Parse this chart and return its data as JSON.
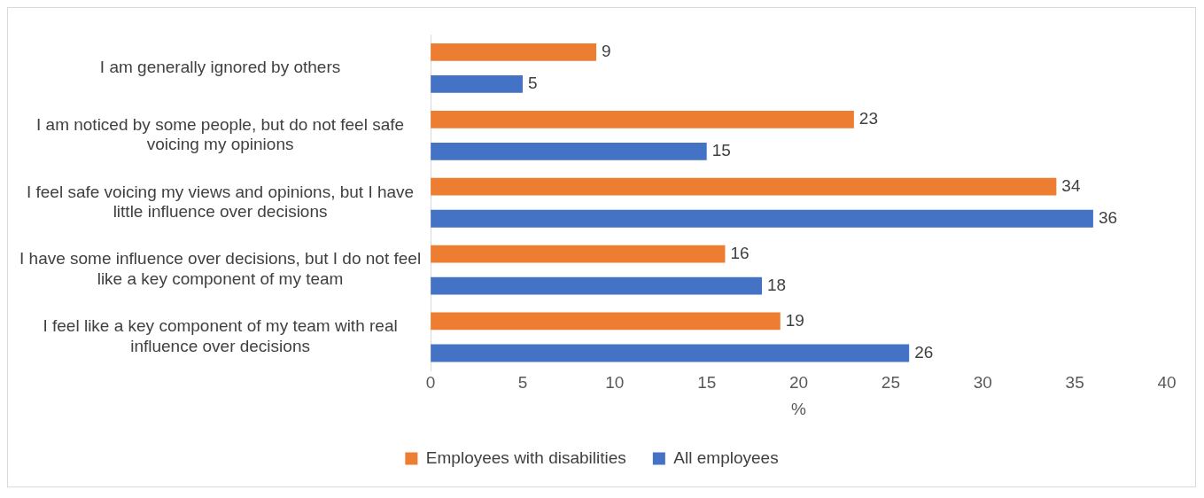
{
  "chart_data": {
    "type": "bar",
    "orientation": "horizontal",
    "xlabel": "%",
    "categories": [
      "I am generally ignored by others",
      "I am noticed by some people, but do not feel safe voicing my opinions",
      "I feel safe voicing my views and opinions, but I have little influence over decisions",
      "I have some influence over decisions, but I do not feel like a key component of my team",
      "I feel like a key component of my team with real influence over decisions"
    ],
    "series": [
      {
        "name": "Employees with disabilities",
        "color": "#ed7d31",
        "values": [
          9,
          23,
          34,
          16,
          19
        ]
      },
      {
        "name": "All employees",
        "color": "#4472c4",
        "values": [
          5,
          15,
          36,
          18,
          26
        ]
      }
    ],
    "xlim": [
      0,
      40
    ],
    "xticks": [
      0,
      5,
      10,
      15,
      20,
      25,
      30,
      35,
      40
    ],
    "grid": false,
    "legend": "bottom",
    "data_labels": true
  }
}
